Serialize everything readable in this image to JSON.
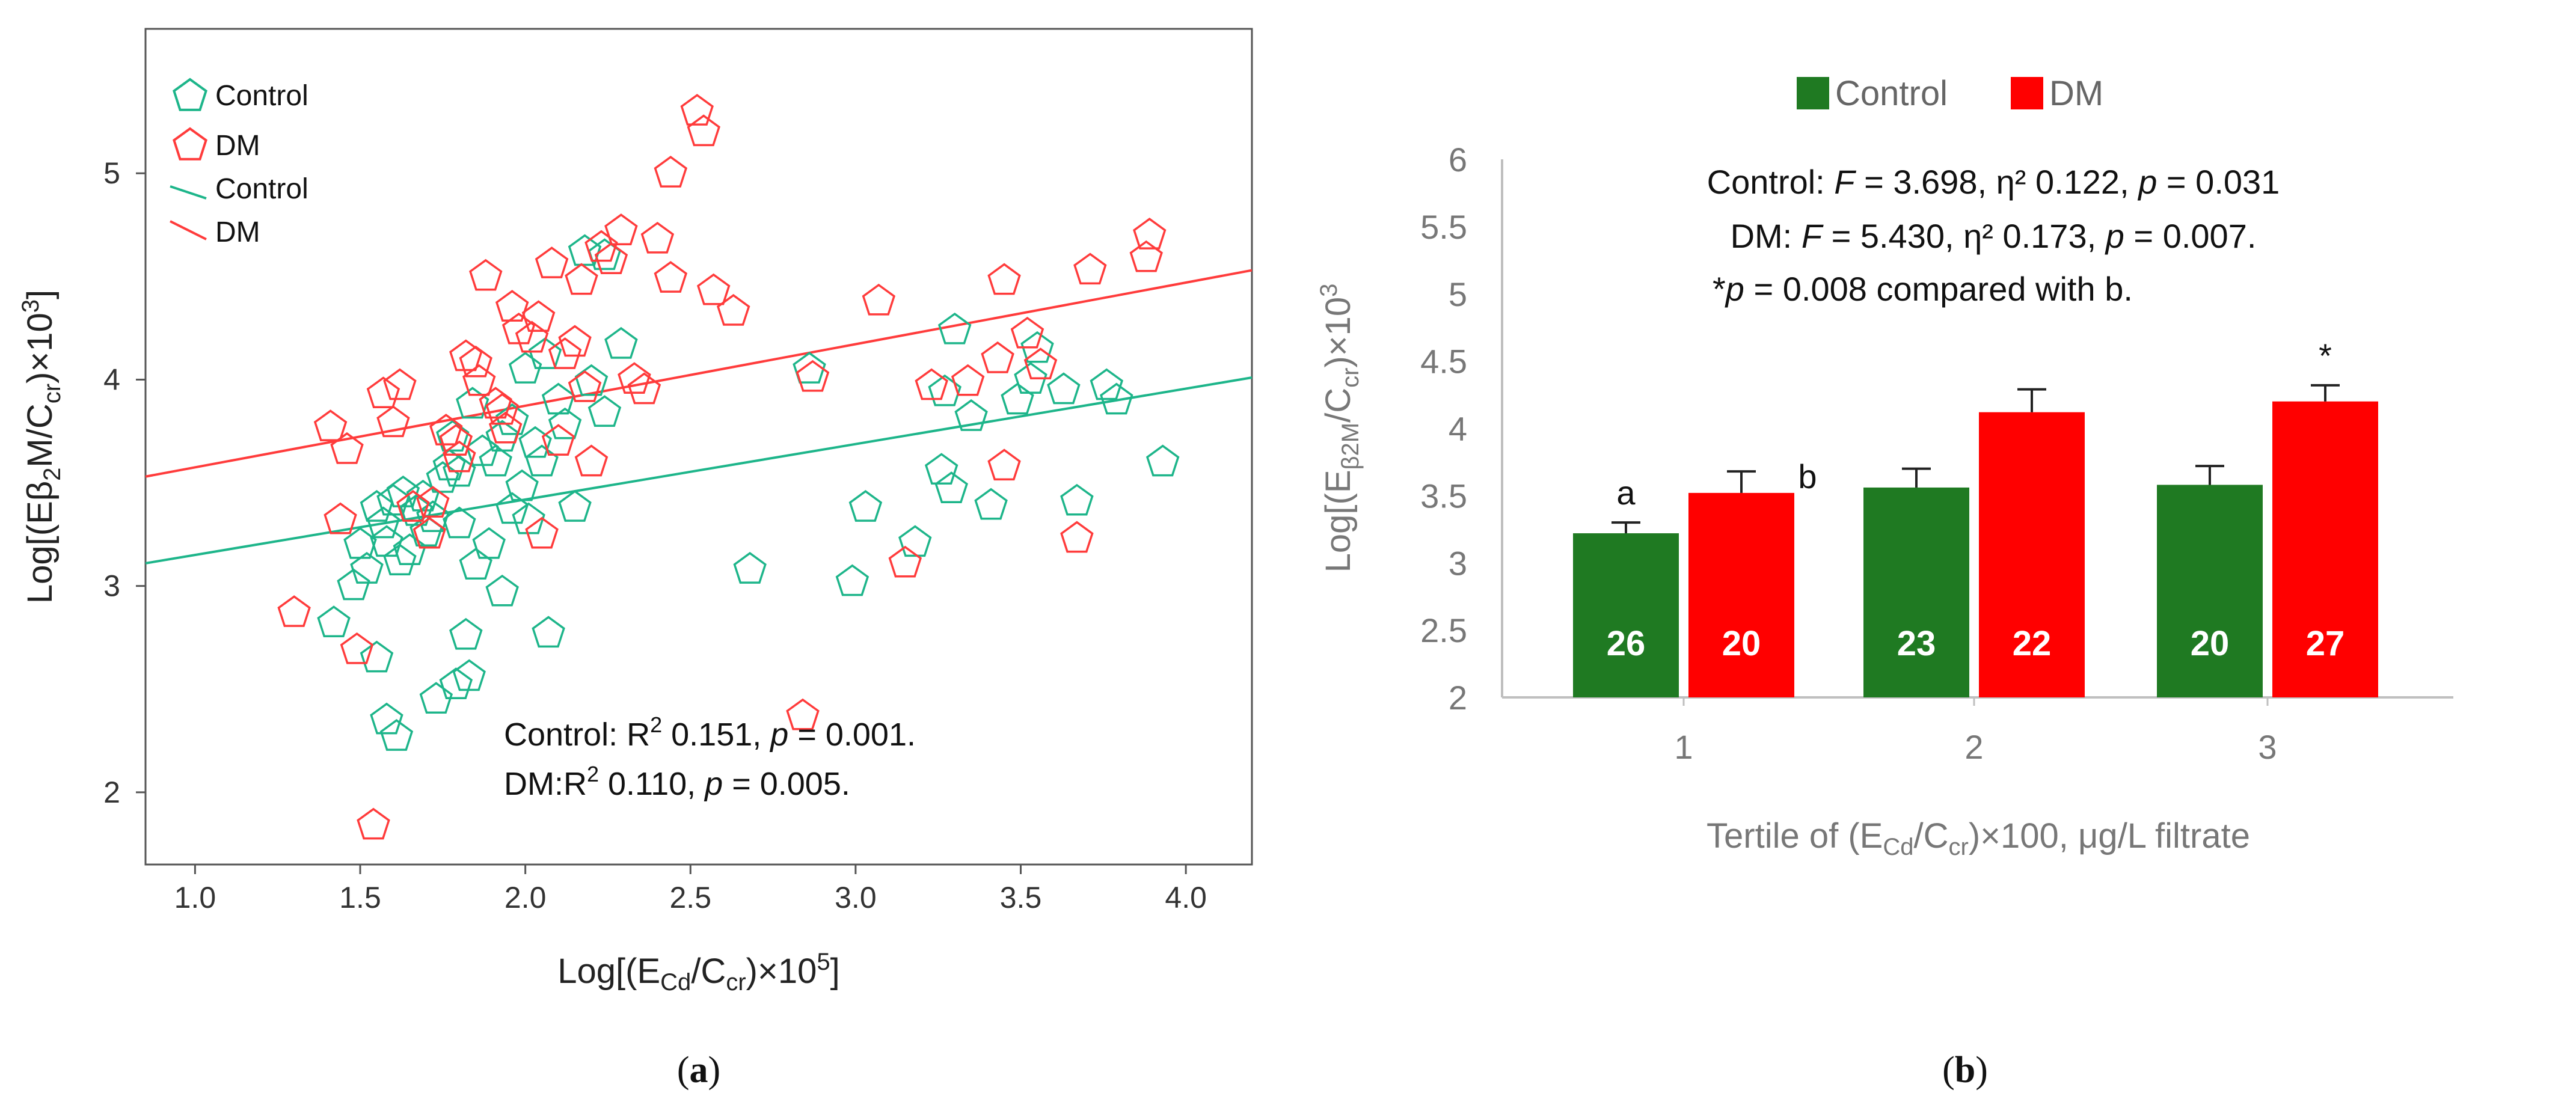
{
  "chart_data": [
    {
      "panel": "(a)",
      "type": "scatter",
      "panel_label": "(a)",
      "xlabel": "Log[(ECd/Ccr)×10^5]",
      "ylabel": "Log[(Eβ2M/Ccr)×10^3]",
      "xlim": [
        0.85,
        4.2
      ],
      "ylim": [
        1.65,
        5.7
      ],
      "xticks": [
        "1.0",
        "1.5",
        "2.0",
        "2.5",
        "3.0",
        "3.5",
        "4.0"
      ],
      "yticks": [
        "2",
        "3",
        "4",
        "5"
      ],
      "legend": {
        "position": "top-left",
        "entries": [
          "Control",
          "DM",
          "Control",
          "DM"
        ]
      },
      "annotations": {
        "control": {
          "label": "Control: R",
          "text": " 0.151, ",
          "p": " = 0.001."
        },
        "dm": {
          "label": "DM:R",
          "text": " 0.110, ",
          "p": " = 0.005."
        }
      },
      "fit_lines": [
        {
          "name": "Control",
          "color": "#1db58a",
          "x": [
            0.85,
            4.2
          ],
          "y": [
            3.11,
            4.01
          ]
        },
        {
          "name": "DM",
          "color": "#ff3b3b",
          "x": [
            0.85,
            4.2
          ],
          "y": [
            3.53,
            4.53
          ]
        }
      ],
      "series": [
        {
          "name": "Control",
          "color": "#1db58a",
          "points": [
            [
              1.42,
              2.82
            ],
            [
              1.55,
              2.65
            ],
            [
              1.58,
              2.35
            ],
            [
              1.61,
              2.27
            ],
            [
              1.73,
              2.45
            ],
            [
              1.79,
              2.52
            ],
            [
              1.83,
              2.56
            ],
            [
              1.82,
              2.76
            ],
            [
              1.48,
              3.0
            ],
            [
              1.52,
              3.08
            ],
            [
              1.5,
              3.2
            ],
            [
              1.58,
              3.21
            ],
            [
              1.62,
              3.12
            ],
            [
              1.55,
              3.38
            ],
            [
              1.57,
              3.3
            ],
            [
              1.6,
              3.41
            ],
            [
              1.63,
              3.45
            ],
            [
              1.67,
              3.36
            ],
            [
              1.7,
              3.26
            ],
            [
              1.72,
              3.33
            ],
            [
              1.75,
              3.52
            ],
            [
              1.77,
              3.58
            ],
            [
              1.8,
              3.55
            ],
            [
              1.85,
              3.1
            ],
            [
              1.89,
              3.2
            ],
            [
              1.93,
              2.97
            ],
            [
              1.96,
              3.37
            ],
            [
              1.99,
              3.48
            ],
            [
              2.03,
              3.69
            ],
            [
              2.05,
              3.6
            ],
            [
              2.07,
              2.77
            ],
            [
              2.15,
              3.38
            ],
            [
              2.1,
              3.9
            ],
            [
              2.06,
              4.12
            ],
            [
              2.0,
              4.05
            ],
            [
              1.96,
              3.8
            ],
            [
              1.93,
              3.72
            ],
            [
              2.2,
              3.99
            ],
            [
              2.24,
              3.84
            ],
            [
              2.29,
              4.17
            ],
            [
              2.18,
              4.62
            ],
            [
              2.24,
              4.6
            ],
            [
              1.84,
              3.88
            ],
            [
              1.87,
              3.65
            ],
            [
              1.8,
              3.3
            ],
            [
              2.68,
              3.08
            ],
            [
              2.86,
              4.05
            ],
            [
              2.99,
              3.02
            ],
            [
              3.03,
              3.38
            ],
            [
              3.18,
              3.21
            ],
            [
              3.26,
              3.56
            ],
            [
              3.29,
              3.47
            ],
            [
              3.35,
              3.82
            ],
            [
              3.27,
              3.94
            ],
            [
              3.3,
              4.24
            ],
            [
              3.41,
              3.39
            ],
            [
              3.49,
              3.9
            ],
            [
              3.53,
              4.0
            ],
            [
              3.55,
              4.15
            ],
            [
              3.63,
              3.95
            ],
            [
              3.67,
              3.41
            ],
            [
              3.76,
              3.97
            ],
            [
              3.79,
              3.9
            ],
            [
              3.93,
              3.6
            ],
            [
              2.01,
              3.32
            ],
            [
              1.65,
              3.17
            ],
            [
              1.91,
              3.6
            ],
            [
              2.12,
              3.78
            ],
            [
              1.78,
              3.72
            ],
            [
              1.69,
              3.43
            ]
          ]
        },
        {
          "name": "DM",
          "color": "#ff3b3b",
          "points": [
            [
              1.3,
              2.87
            ],
            [
              1.49,
              2.69
            ],
            [
              1.54,
              1.84
            ],
            [
              1.41,
              3.77
            ],
            [
              1.46,
              3.66
            ],
            [
              1.44,
              3.32
            ],
            [
              1.57,
              3.93
            ],
            [
              1.6,
              3.79
            ],
            [
              1.62,
              3.97
            ],
            [
              1.66,
              3.38
            ],
            [
              1.71,
              3.25
            ],
            [
              1.76,
              3.75
            ],
            [
              1.79,
              3.7
            ],
            [
              1.8,
              3.62
            ],
            [
              1.82,
              4.11
            ],
            [
              1.85,
              4.08
            ],
            [
              1.86,
              3.99
            ],
            [
              1.88,
              4.5
            ],
            [
              1.91,
              3.88
            ],
            [
              1.94,
              3.76
            ],
            [
              1.96,
              4.35
            ],
            [
              1.98,
              4.24
            ],
            [
              2.02,
              4.2
            ],
            [
              2.04,
              4.3
            ],
            [
              2.08,
              4.56
            ],
            [
              2.12,
              4.12
            ],
            [
              2.15,
              4.18
            ],
            [
              2.17,
              4.48
            ],
            [
              2.18,
              3.96
            ],
            [
              2.2,
              3.6
            ],
            [
              2.23,
              4.64
            ],
            [
              2.26,
              4.58
            ],
            [
              2.29,
              4.72
            ],
            [
              2.33,
              4.0
            ],
            [
              2.36,
              3.95
            ],
            [
              2.4,
              4.68
            ],
            [
              2.44,
              4.49
            ],
            [
              2.44,
              5.0
            ],
            [
              2.52,
              5.3
            ],
            [
              2.54,
              5.2
            ],
            [
              2.57,
              4.43
            ],
            [
              2.63,
              4.33
            ],
            [
              2.84,
              2.37
            ],
            [
              2.87,
              4.01
            ],
            [
              3.07,
              4.38
            ],
            [
              3.15,
              3.11
            ],
            [
              3.23,
              3.97
            ],
            [
              3.34,
              3.99
            ],
            [
              3.43,
              4.1
            ],
            [
              3.45,
              4.48
            ],
            [
              3.45,
              3.58
            ],
            [
              3.52,
              4.22
            ],
            [
              3.56,
              4.07
            ],
            [
              3.67,
              3.23
            ],
            [
              3.71,
              4.53
            ],
            [
              3.88,
              4.59
            ],
            [
              3.89,
              4.7
            ],
            [
              2.05,
              3.25
            ],
            [
              1.93,
              3.85
            ],
            [
              2.1,
              3.7
            ],
            [
              1.72,
              3.4
            ]
          ]
        }
      ]
    },
    {
      "panel": "(b)",
      "type": "bar",
      "panel_label": "(b)",
      "categories": [
        "1",
        "2",
        "3"
      ],
      "xlabel": "Tertile of (ECd/Ccr)×100, μg/L filtrate",
      "ylabel": "Log[(Eβ2M/Ccr)×10^3]",
      "ylim": [
        2,
        6
      ],
      "yticks": [
        "2",
        "2.5",
        "3",
        "3.5",
        "4",
        "4.5",
        "5",
        "5.5",
        "6"
      ],
      "legend": {
        "position": "top-center",
        "entries": [
          "Control",
          "DM"
        ]
      },
      "series": [
        {
          "name": "Control",
          "color": "#1f7a22",
          "values": [
            3.22,
            3.56,
            3.58
          ],
          "errors": [
            0.08,
            0.14,
            0.14
          ],
          "counts": [
            "26",
            "23",
            "20"
          ],
          "markers": [
            "a",
            "",
            ""
          ]
        },
        {
          "name": "DM",
          "color": "#ff0000",
          "values": [
            3.52,
            4.12,
            4.2
          ],
          "errors": [
            0.16,
            0.17,
            0.12
          ],
          "counts": [
            "20",
            "22",
            "27"
          ],
          "markers": [
            "b",
            "",
            "*"
          ]
        }
      ],
      "stats": [
        {
          "pre": "Control: ",
          "f": "F",
          "text": " = 3.698, η² 0.122, ",
          "p": "p",
          "post": " = 0.031"
        },
        {
          "pre": "DM: ",
          "f": "F",
          "text": " = 5.430, η² 0.173, ",
          "p": "p",
          "post": " = 0.007."
        },
        {
          "pre": "*",
          "f": "",
          "text": "",
          "p": "p",
          "post": " = 0.008 compared with b."
        }
      ]
    }
  ]
}
